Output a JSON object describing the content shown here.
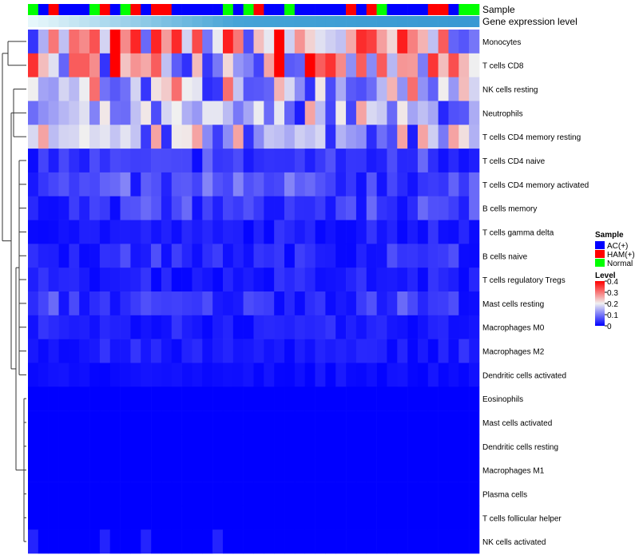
{
  "chart_data": {
    "type": "heatmap",
    "annotation_labels": {
      "sample": "Sample",
      "gene_expression": "Gene expression level"
    },
    "sample_groups": [
      "Normal",
      "AC(+)",
      "HAM(+)",
      "AC(+)",
      "AC(+)",
      "AC(+)",
      "Normal",
      "HAM(+)",
      "AC(+)",
      "Normal",
      "HAM(+)",
      "AC(+)",
      "HAM(+)",
      "HAM(+)",
      "AC(+)",
      "AC(+)",
      "AC(+)",
      "AC(+)",
      "AC(+)",
      "Normal",
      "AC(+)",
      "Normal",
      "HAM(+)",
      "AC(+)",
      "AC(+)",
      "Normal",
      "AC(+)",
      "AC(+)",
      "AC(+)",
      "AC(+)",
      "AC(+)",
      "HAM(+)",
      "AC(+)",
      "HAM(+)",
      "Normal",
      "AC(+)",
      "AC(+)",
      "AC(+)",
      "AC(+)",
      "HAM(+)",
      "HAM(+)",
      "AC(+)",
      "Normal",
      "Normal"
    ],
    "group_colors": {
      "AC(+)": "#0000ff",
      "HAM(+)": "#ff0000",
      "Normal": "#00ff00"
    },
    "gene_expression_colors": [
      "#e6f7fb",
      "#dff3f9",
      "#d7eff7",
      "#cfeaf5",
      "#c6e6f3",
      "#bee2f1",
      "#b6def0",
      "#aedaee",
      "#a5d5ec",
      "#9dd1ea",
      "#95cde8",
      "#8dc9e6",
      "#84c5e4",
      "#7cc0e2",
      "#74bce1",
      "#6cb8df",
      "#64b4dd",
      "#5cb0db",
      "#54abd9",
      "#4ca7d8",
      "#46a4d7",
      "#44a3d7",
      "#43a2d6",
      "#42a2d6",
      "#42a1d6",
      "#41a1d6",
      "#40a0d5",
      "#40a0d5",
      "#3f9fd5",
      "#3f9fd5",
      "#3e9ed5",
      "#3e9ed5",
      "#3d9dd4",
      "#3d9dd4",
      "#3c9cd4",
      "#3c9cd4",
      "#3b9bd4",
      "#3b9bd4",
      "#3a9ad3",
      "#3a9ad3",
      "#399ad3",
      "#3999d3",
      "#3899d3",
      "#3898d3"
    ],
    "rows": [
      "Monocytes",
      "T cells CD8",
      "NK cells resting",
      "Neutrophils",
      "T cells CD4 memory resting",
      "T cells CD4 naive",
      "T cells CD4 memory activated",
      "B cells memory",
      "T cells gamma delta",
      "B cells naive",
      "T cells regulatory  Tregs",
      "Mast cells resting",
      "Macrophages M0",
      "Macrophages M2",
      "Dendritic cells activated",
      "Eosinophils",
      "Mast cells activated",
      "Dendritic cells resting",
      "Macrophages M1",
      "Plasma cells",
      "T cells follicular helper",
      "NK cells activated"
    ],
    "base_values": [
      0.22,
      0.2,
      0.14,
      0.12,
      0.12,
      0.04,
      0.05,
      0.04,
      0.02,
      0.03,
      0.02,
      0.04,
      0.02,
      0.02,
      0.01,
      0.0,
      0.0,
      0.0,
      0.0,
      0.0,
      0.0,
      0.0
    ],
    "legend": {
      "sample_title": "Sample",
      "sample_entries": [
        "AC(+)",
        "HAM(+)",
        "Normal"
      ],
      "level_title": "Level",
      "level_ticks": [
        "0.4",
        "0.3",
        "0.2",
        "0.1",
        "0"
      ],
      "range": [
        0,
        0.4
      ]
    },
    "colors": {
      "low": "#0000ff",
      "mid": "#f0f0f0",
      "high": "#ff0000"
    }
  }
}
